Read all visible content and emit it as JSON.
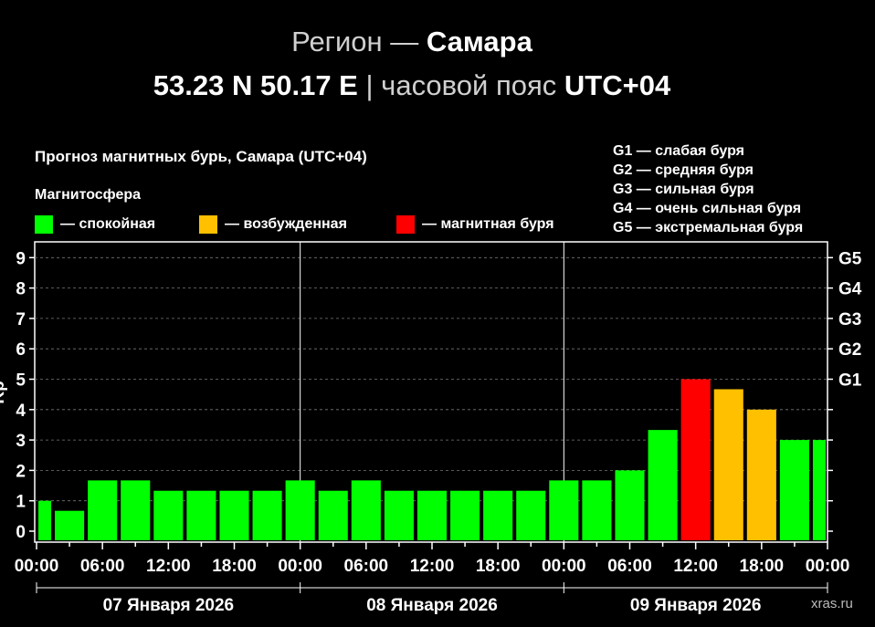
{
  "header": {
    "region_prefix": "Регион —",
    "region_name": "Самара",
    "coords": "53.23 N 50.17 E",
    "separator": "|",
    "tz_prefix": "часовой пояс",
    "tz_value": "UTC+04"
  },
  "legend": {
    "section": "Магнитосфера",
    "items": [
      {
        "label": "— спокойная",
        "color": "#00ff00"
      },
      {
        "label": "— возбужденная",
        "color": "#ffc000"
      },
      {
        "label": "— магнитная буря",
        "color": "#ff0000"
      }
    ],
    "g_scale": [
      "G1 — слабая буря",
      "G2 — средняя буря",
      "G3 — сильная буря",
      "G4 — очень сильная буря",
      "G5 — экстремальная буря"
    ]
  },
  "watermark": "xras.ru",
  "chart_data": {
    "type": "bar",
    "title": "Прогноз магнитных бурь, Самара (UTC+04)",
    "ylabel": "Kp",
    "ylim": [
      0,
      9
    ],
    "y_ticks": [
      "0",
      "1",
      "2",
      "3",
      "4",
      "5",
      "6",
      "7",
      "8",
      "9"
    ],
    "right_ticks": [
      {
        "label": "G1",
        "value": 5
      },
      {
        "label": "G2",
        "value": 6
      },
      {
        "label": "G3",
        "value": 7
      },
      {
        "label": "G4",
        "value": 8
      },
      {
        "label": "G5",
        "value": 9
      }
    ],
    "x_tick_labels": [
      "00:00",
      "06:00",
      "12:00",
      "18:00",
      "00:00",
      "06:00",
      "12:00",
      "18:00",
      "00:00",
      "06:00",
      "12:00",
      "18:00",
      "00:00"
    ],
    "day_labels": [
      "07 Января 2026",
      "08 Января 2026",
      "09 Января 2026"
    ],
    "grid": true,
    "series": [
      {
        "values": [
          1.0,
          0.67,
          1.67,
          1.67,
          1.33,
          1.33,
          1.33,
          1.33,
          1.67,
          1.33,
          1.67,
          1.33,
          1.33,
          1.33,
          1.33,
          1.33,
          1.67,
          1.67,
          2.0,
          3.33,
          5.0,
          4.67,
          4.0,
          3.0,
          3.0
        ],
        "colors": [
          "#00ff00",
          "#00ff00",
          "#00ff00",
          "#00ff00",
          "#00ff00",
          "#00ff00",
          "#00ff00",
          "#00ff00",
          "#00ff00",
          "#00ff00",
          "#00ff00",
          "#00ff00",
          "#00ff00",
          "#00ff00",
          "#00ff00",
          "#00ff00",
          "#00ff00",
          "#00ff00",
          "#00ff00",
          "#00ff00",
          "#ff0000",
          "#ffc000",
          "#ffc000",
          "#00ff00",
          "#00ff00"
        ]
      }
    ]
  }
}
